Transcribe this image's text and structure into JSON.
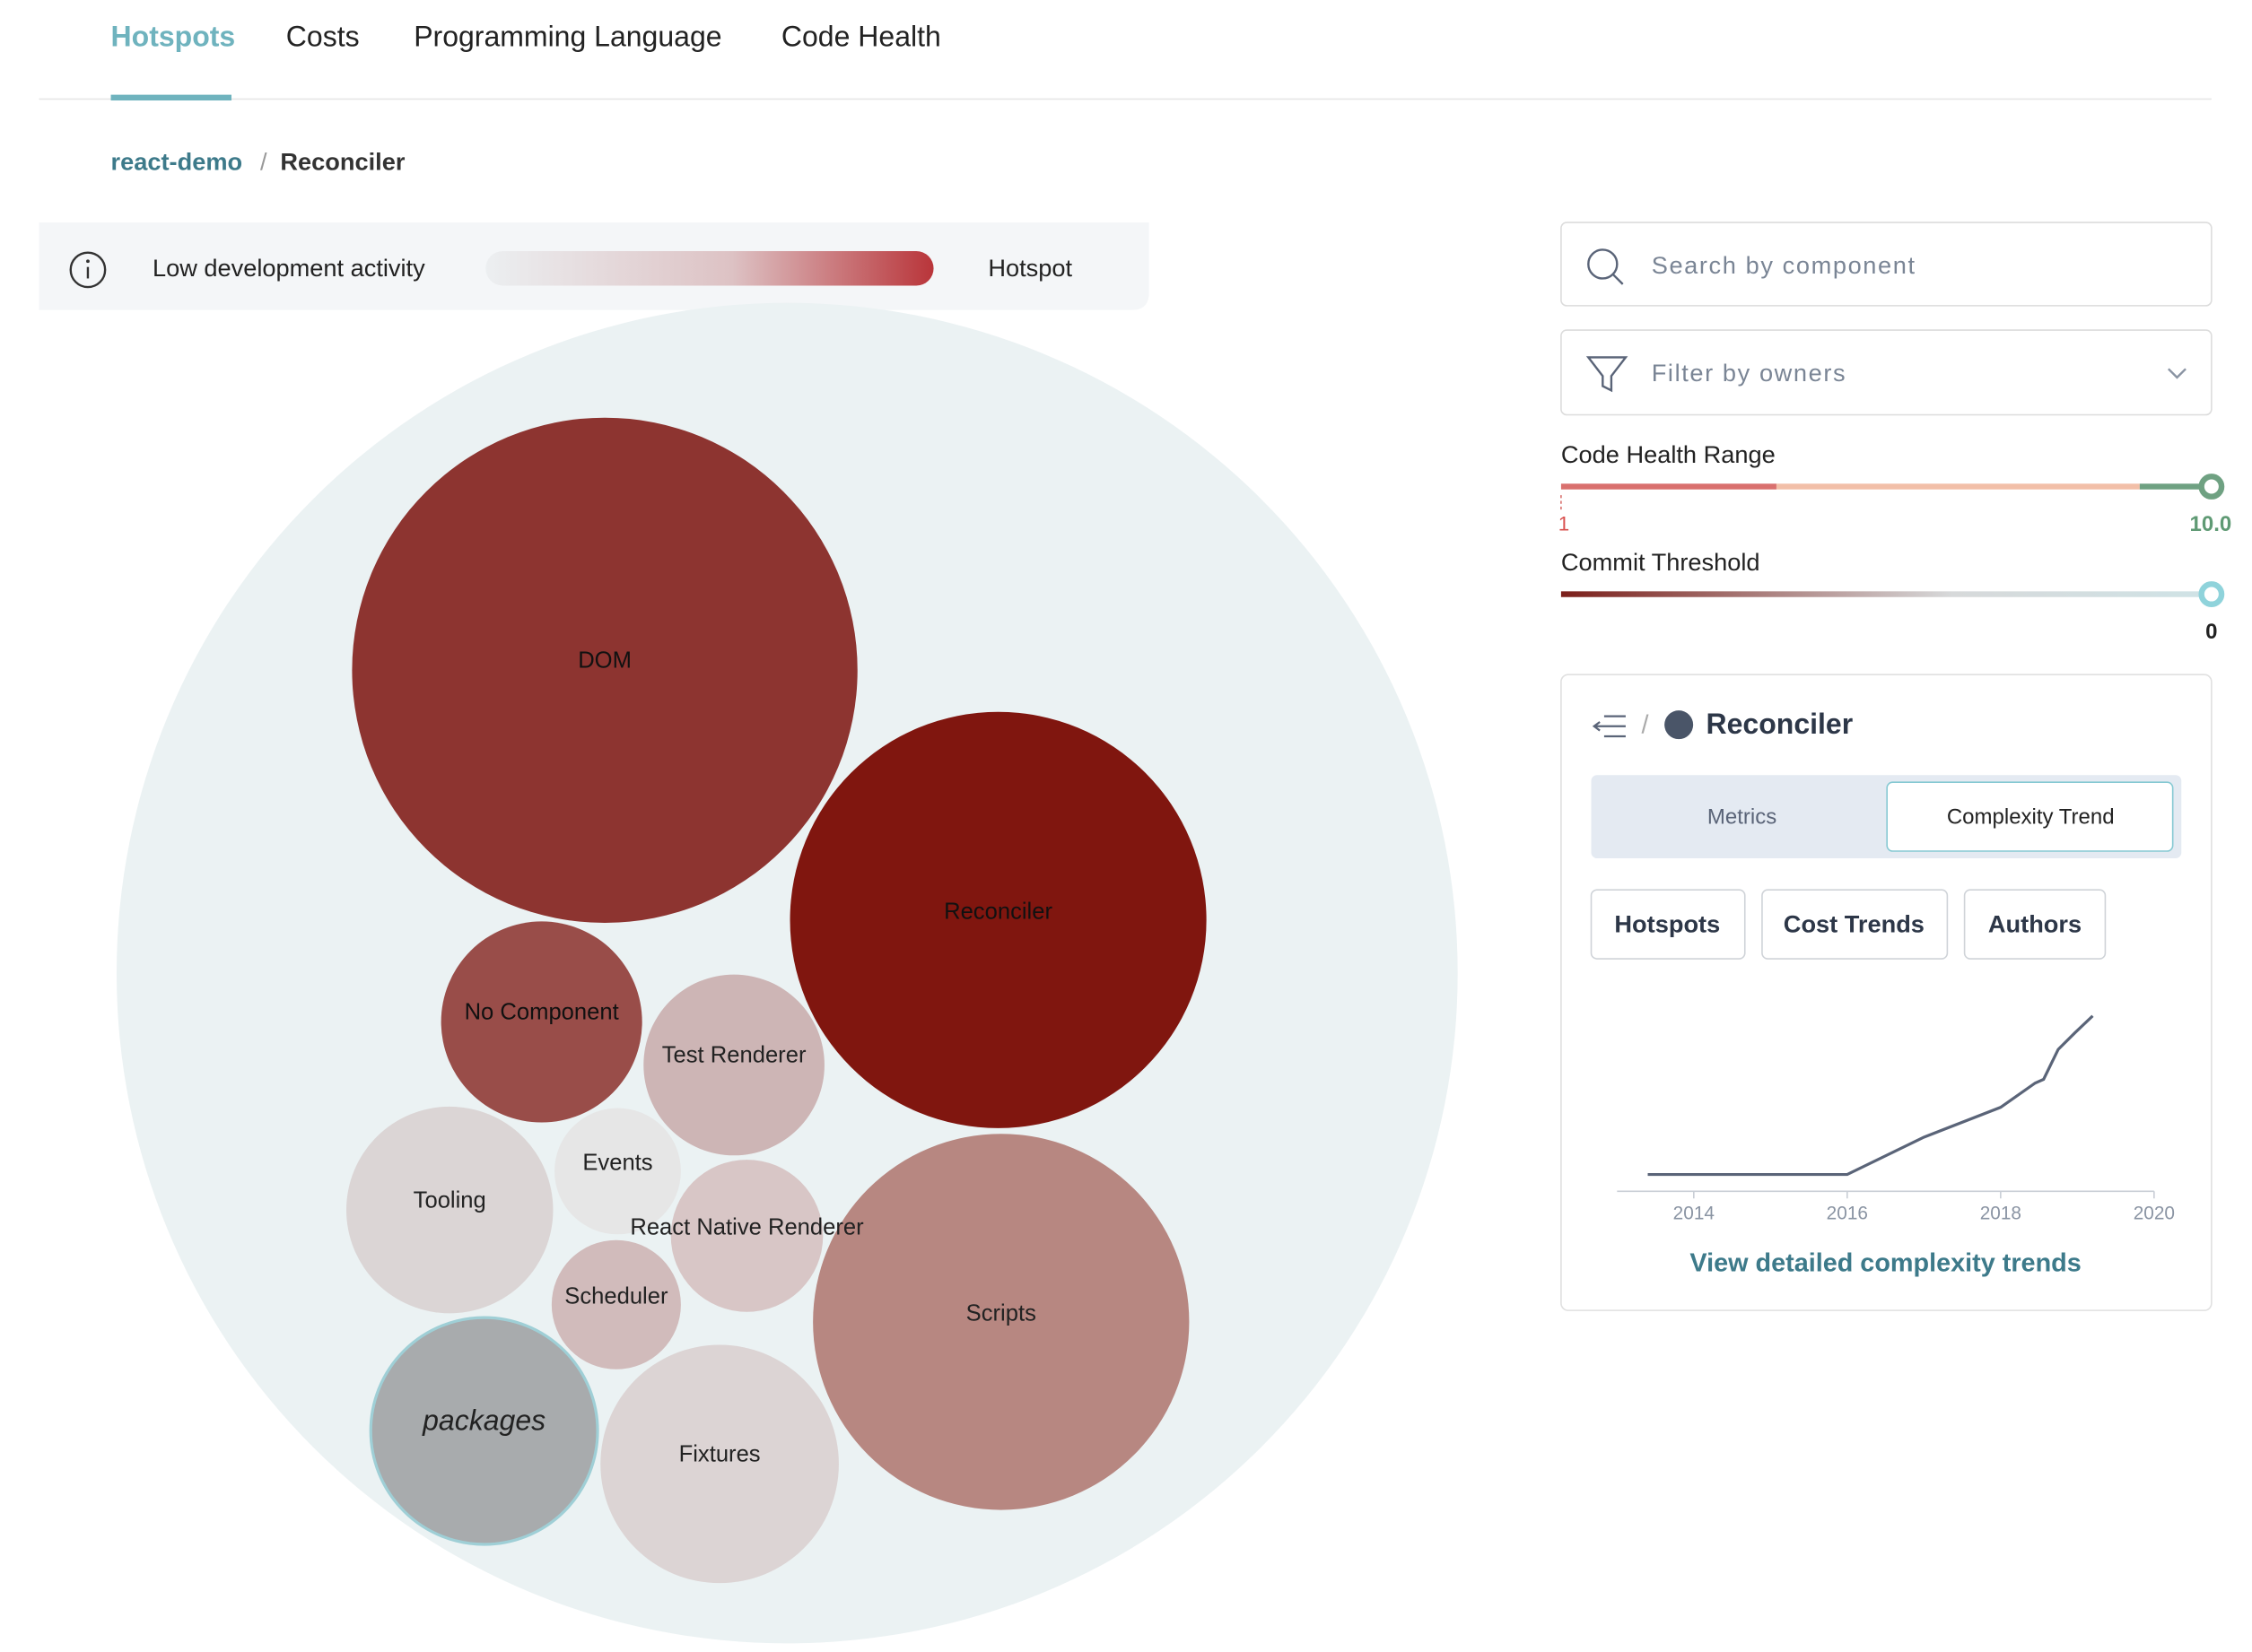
{
  "tabs": [
    "Hotspots",
    "Costs",
    "Programming Language",
    "Code Health"
  ],
  "breadcrumb": {
    "project": "react-demo",
    "separator": "/",
    "current": "Reconciler"
  },
  "legend": {
    "low": "Low development activity",
    "high": "Hotspot"
  },
  "bubbles": [
    {
      "label": "DOM",
      "color": "#8d3430"
    },
    {
      "label": "Reconciler",
      "color": "#80160f"
    },
    {
      "label": "No Component",
      "color": "#994d49"
    },
    {
      "label": "Test Renderer",
      "color": "#cdb5b5"
    },
    {
      "label": "Tooling",
      "color": "#dbd5d5"
    },
    {
      "label": "Events",
      "color": "#e6e6e6"
    },
    {
      "label": "React Native Renderer",
      "color": "#d8c6c6"
    },
    {
      "label": "Scheduler",
      "color": "#d1bbbb"
    },
    {
      "label": "packages",
      "color": "#a8abad"
    },
    {
      "label": "Fixtures",
      "color": "#dcd4d4"
    },
    {
      "label": "Scripts",
      "color": "#b78781"
    }
  ],
  "search": {
    "placeholder": "Search by component"
  },
  "filter": {
    "placeholder": "Filter by owners"
  },
  "code_health": {
    "label": "Code Health Range",
    "min": "1",
    "max": "10.0"
  },
  "commit_threshold": {
    "label": "Commit Threshold",
    "value": "0"
  },
  "panel": {
    "separator": "/",
    "title": "Reconciler",
    "toggle": [
      "Metrics",
      "Complexity Trend"
    ],
    "buttons": [
      "Hotspots",
      "Cost Trends",
      "Authors"
    ],
    "trend": {
      "type": "line",
      "color": "#5a6478",
      "x": [
        2013.4,
        2016,
        2017,
        2018,
        2018.45,
        2018.56,
        2018.75,
        2018.97,
        2019.2
      ],
      "values": [
        9,
        9,
        29,
        45,
        58,
        60,
        76,
        85,
        94
      ],
      "xlim": [
        2013,
        2020
      ],
      "xticks": [
        2014,
        2016,
        2018,
        2020
      ],
      "ylim": [
        0,
        100
      ]
    },
    "link": "View detailed complexity trends"
  }
}
